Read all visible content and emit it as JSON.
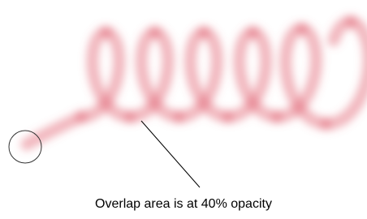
{
  "annotation": {
    "text": "Overlap area is at 40% opacity"
  }
}
